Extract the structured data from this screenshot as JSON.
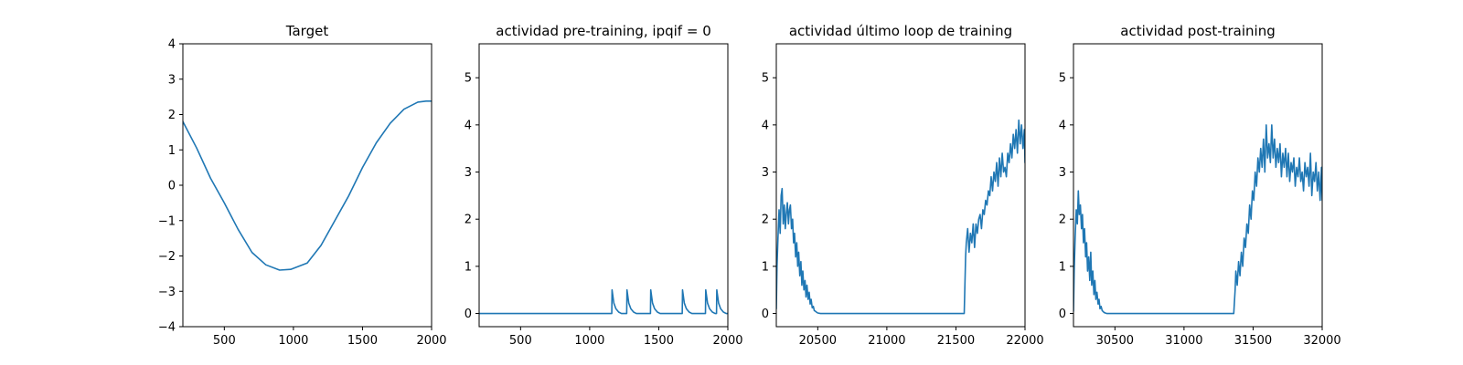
{
  "chart_data": [
    {
      "type": "line",
      "title": "Target",
      "xlabel": "",
      "ylabel": "",
      "xlim": [
        200,
        2000
      ],
      "ylim": [
        -4,
        4
      ],
      "xticks": [
        500,
        1000,
        1500,
        2000
      ],
      "yticks": [
        -4,
        -3,
        -2,
        -1,
        0,
        1,
        2,
        3,
        4
      ],
      "xtick_labels": [
        "500",
        "1000",
        "1500",
        "2000"
      ],
      "ytick_labels": [
        "−4",
        "−3",
        "−2",
        "−1",
        "0",
        "1",
        "2",
        "3",
        "4"
      ],
      "series": [
        {
          "color": "#1f77b4",
          "x": [
            200,
            300,
            400,
            500,
            600,
            700,
            800,
            900,
            980,
            1100,
            1200,
            1300,
            1400,
            1500,
            1600,
            1700,
            1800,
            1900,
            1960,
            2000
          ],
          "y": [
            1.8,
            1.05,
            0.2,
            -0.5,
            -1.25,
            -1.9,
            -2.25,
            -2.4,
            -2.38,
            -2.2,
            -1.7,
            -1.0,
            -0.3,
            0.5,
            1.2,
            1.75,
            2.15,
            2.35,
            2.38,
            2.38
          ]
        }
      ]
    },
    {
      "type": "line",
      "title": "actividad pre-training, ipqif = 0",
      "xlabel": "",
      "ylabel": "",
      "xlim": [
        200,
        2000
      ],
      "ylim": [
        -0.28,
        5.72
      ],
      "xticks": [
        500,
        1000,
        1500,
        2000
      ],
      "yticks": [
        0,
        1,
        2,
        3,
        4,
        5
      ],
      "xtick_labels": [
        "500",
        "1000",
        "1500",
        "2000"
      ],
      "ytick_labels": [
        "0",
        "1",
        "2",
        "3",
        "4",
        "5"
      ],
      "series": [
        {
          "color": "#1f77b4",
          "x": [
            200,
            1160,
            1162,
            1175,
            1190,
            1210,
            1230,
            1268,
            1270,
            1283,
            1298,
            1318,
            1338,
            1440,
            1442,
            1455,
            1470,
            1490,
            1510,
            1670,
            1672,
            1685,
            1700,
            1720,
            1740,
            1838,
            1840,
            1853,
            1868,
            1888,
            1908,
            1918,
            1920,
            1933,
            1948,
            1968,
            1988,
            2000
          ],
          "y": [
            0,
            0,
            0.5,
            0.22,
            0.1,
            0.03,
            0,
            0,
            0.5,
            0.22,
            0.1,
            0.03,
            0,
            0,
            0.5,
            0.22,
            0.1,
            0.03,
            0,
            0,
            0.5,
            0.22,
            0.1,
            0.03,
            0,
            0,
            0.5,
            0.22,
            0.1,
            0.03,
            0,
            0,
            0.5,
            0.22,
            0.1,
            0.03,
            0,
            0
          ]
        }
      ]
    },
    {
      "type": "line",
      "title": "actividad último loop de training",
      "xlabel": "",
      "ylabel": "",
      "xlim": [
        20200,
        22000
      ],
      "ylim": [
        -0.28,
        5.72
      ],
      "xticks": [
        20500,
        21000,
        21500,
        22000
      ],
      "yticks": [
        0,
        1,
        2,
        3,
        4,
        5
      ],
      "xtick_labels": [
        "20500",
        "21000",
        "21500",
        "22000"
      ],
      "ytick_labels": [
        "0",
        "1",
        "2",
        "3",
        "4",
        "5"
      ],
      "series": [
        {
          "color": "#1f77b4",
          "x": [
            20200,
            20205,
            20212,
            20220,
            20228,
            20235,
            20242,
            20250,
            20258,
            20265,
            20272,
            20280,
            20288,
            20295,
            20302,
            20310,
            20318,
            20325,
            20332,
            20340,
            20348,
            20355,
            20362,
            20370,
            20378,
            20385,
            20392,
            20400,
            20408,
            20415,
            20422,
            20430,
            20438,
            20445,
            20452,
            20460,
            20468,
            20475,
            20482,
            20490,
            20500,
            20520,
            20540,
            20560,
            21560,
            21570,
            21575,
            21585,
            21595,
            21605,
            21615,
            21625,
            21635,
            21645,
            21655,
            21665,
            21675,
            21685,
            21695,
            21705,
            21715,
            21725,
            21735,
            21745,
            21755,
            21765,
            21775,
            21785,
            21795,
            21805,
            21815,
            21825,
            21835,
            21845,
            21855,
            21865,
            21875,
            21885,
            21895,
            21905,
            21915,
            21925,
            21935,
            21945,
            21955,
            21965,
            21975,
            21985,
            21995,
            22000
          ],
          "y": [
            0.1,
            1.0,
            1.6,
            2.2,
            1.7,
            2.5,
            2.65,
            1.9,
            2.3,
            1.8,
            2.1,
            2.35,
            1.9,
            2.2,
            2.3,
            1.8,
            2.0,
            1.5,
            1.7,
            1.2,
            1.5,
            1.0,
            1.3,
            0.8,
            1.1,
            0.6,
            0.9,
            0.5,
            0.7,
            0.35,
            0.6,
            0.3,
            0.45,
            0.2,
            0.3,
            0.12,
            0.15,
            0.06,
            0.05,
            0.03,
            0.01,
            0,
            0,
            0,
            0,
            1.2,
            1.5,
            1.8,
            1.3,
            1.7,
            1.5,
            1.9,
            1.4,
            1.9,
            1.7,
            2.0,
            2.1,
            1.8,
            2.2,
            2.1,
            2.4,
            2.3,
            2.6,
            2.5,
            2.9,
            2.6,
            3.0,
            2.8,
            3.2,
            2.7,
            3.3,
            2.9,
            3.4,
            3.0,
            3.1,
            2.9,
            3.4,
            3.2,
            3.6,
            3.3,
            3.8,
            3.5,
            3.9,
            3.4,
            4.1,
            3.6,
            4.0,
            3.5,
            3.9,
            3.2
          ]
        }
      ]
    },
    {
      "type": "line",
      "title": "actividad post-training",
      "xlabel": "",
      "ylabel": "",
      "xlim": [
        30200,
        32000
      ],
      "ylim": [
        -0.28,
        5.72
      ],
      "xticks": [
        30500,
        31000,
        31500,
        32000
      ],
      "yticks": [
        0,
        1,
        2,
        3,
        4,
        5
      ],
      "xtick_labels": [
        "30500",
        "31000",
        "31500",
        "32000"
      ],
      "ytick_labels": [
        "0",
        "1",
        "2",
        "3",
        "4",
        "5"
      ],
      "series": [
        {
          "color": "#1f77b4",
          "x": [
            30200,
            30205,
            30212,
            30220,
            30228,
            30235,
            30242,
            30250,
            30258,
            30265,
            30272,
            30280,
            30288,
            30295,
            30302,
            30310,
            30318,
            30325,
            30332,
            30340,
            30348,
            30355,
            30362,
            30370,
            30378,
            30385,
            30392,
            30400,
            30408,
            30415,
            30422,
            30430,
            30440,
            30450,
            30460,
            30480,
            30500,
            31360,
            31370,
            31375,
            31385,
            31395,
            31405,
            31415,
            31425,
            31435,
            31445,
            31455,
            31465,
            31475,
            31485,
            31495,
            31505,
            31515,
            31525,
            31535,
            31545,
            31555,
            31565,
            31575,
            31585,
            31595,
            31605,
            31615,
            31625,
            31635,
            31645,
            31655,
            31665,
            31675,
            31685,
            31695,
            31705,
            31715,
            31725,
            31735,
            31745,
            31755,
            31765,
            31775,
            31785,
            31795,
            31805,
            31815,
            31825,
            31835,
            31845,
            31855,
            31865,
            31875,
            31885,
            31895,
            31905,
            31915,
            31925,
            31935,
            31945,
            31955,
            31965,
            31975,
            31985,
            31995,
            32000
          ],
          "y": [
            0.05,
            0.9,
            1.6,
            2.2,
            1.9,
            2.6,
            2.1,
            2.3,
            1.8,
            2.1,
            1.5,
            1.8,
            1.2,
            1.5,
            0.9,
            1.2,
            0.7,
            1.3,
            0.6,
            0.9,
            0.4,
            0.7,
            0.3,
            0.45,
            0.2,
            0.3,
            0.1,
            0.15,
            0.06,
            0.04,
            0.02,
            0.01,
            0,
            0,
            0,
            0,
            0,
            0,
            0.5,
            0.9,
            0.6,
            1.1,
            0.8,
            1.3,
            1.0,
            1.6,
            1.4,
            1.9,
            1.7,
            2.3,
            2.0,
            2.6,
            2.4,
            3.0,
            2.7,
            3.3,
            3.0,
            3.5,
            3.1,
            3.7,
            3.0,
            4.0,
            3.3,
            3.6,
            3.2,
            4.0,
            3.3,
            3.7,
            3.1,
            3.5,
            3.2,
            3.6,
            2.9,
            3.4,
            3.1,
            3.5,
            2.9,
            3.4,
            2.8,
            3.2,
            3.0,
            3.3,
            2.7,
            3.1,
            2.9,
            3.3,
            2.8,
            3.0,
            2.6,
            3.2,
            2.9,
            3.1,
            2.7,
            3.4,
            2.5,
            3.0,
            2.8,
            3.2,
            2.6,
            3.0,
            2.4,
            3.1,
            2.4
          ]
        }
      ]
    }
  ]
}
